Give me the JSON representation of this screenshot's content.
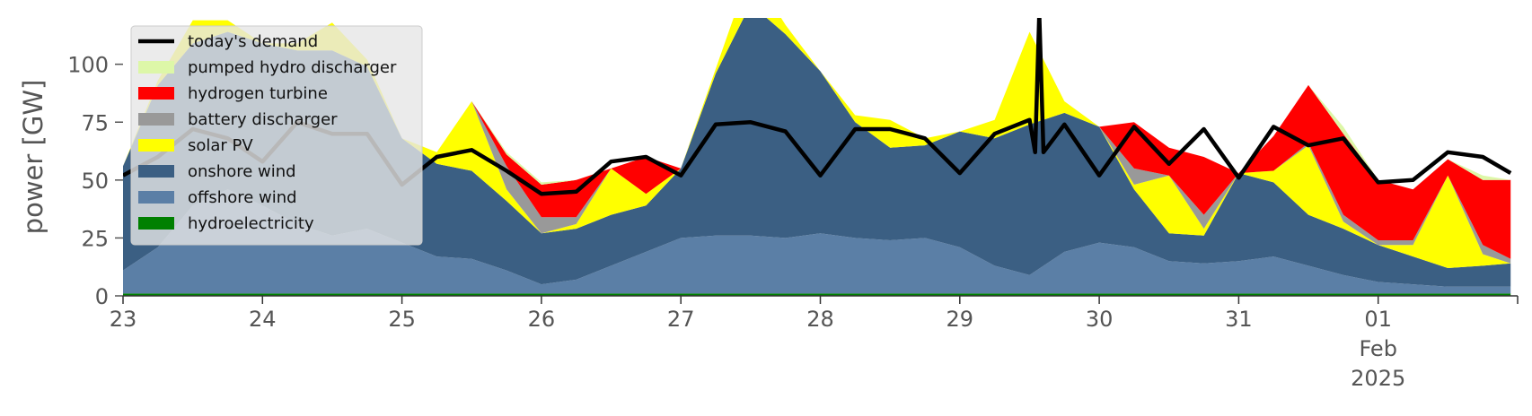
{
  "chart_data": {
    "type": "area",
    "ylabel": "power [GW]",
    "ylim": [
      0,
      120
    ],
    "yticks": [
      0,
      25,
      50,
      75,
      100
    ],
    "xlim": [
      0,
      10
    ],
    "xticks": [
      {
        "x": 0,
        "lines": [
          "23"
        ]
      },
      {
        "x": 1,
        "lines": [
          "24"
        ]
      },
      {
        "x": 2,
        "lines": [
          "25"
        ]
      },
      {
        "x": 3,
        "lines": [
          "26"
        ]
      },
      {
        "x": 4,
        "lines": [
          "27"
        ]
      },
      {
        "x": 5,
        "lines": [
          "28"
        ]
      },
      {
        "x": 6,
        "lines": [
          "29"
        ]
      },
      {
        "x": 7,
        "lines": [
          "30"
        ]
      },
      {
        "x": 8,
        "lines": [
          "31"
        ]
      },
      {
        "x": 9,
        "lines": [
          "01",
          "Feb",
          "2025"
        ]
      }
    ],
    "legend_position": "top-left",
    "x": [
      0,
      0.25,
      0.5,
      0.75,
      1,
      1.25,
      1.5,
      1.75,
      2,
      2.25,
      2.5,
      2.75,
      3,
      3.25,
      3.5,
      3.75,
      4,
      4.25,
      4.5,
      4.75,
      5,
      5.25,
      5.5,
      5.75,
      6,
      6.25,
      6.5,
      6.75,
      7,
      7.25,
      7.5,
      7.75,
      8,
      8.25,
      8.5,
      8.75,
      9,
      9.25,
      9.5,
      9.75,
      9.95
    ],
    "series": [
      {
        "name": "hydroelectricity",
        "color": "#008000",
        "values": [
          1,
          1,
          1,
          1,
          1,
          1,
          1,
          1,
          1,
          1,
          1,
          1,
          1,
          1,
          1,
          1,
          1,
          1,
          1,
          1,
          1,
          1,
          1,
          1,
          1,
          1,
          1,
          1,
          1,
          1,
          1,
          1,
          1,
          1,
          1,
          1,
          1,
          1,
          1,
          1,
          1
        ]
      },
      {
        "name": "offshore wind",
        "color": "#5b7fa6",
        "values": [
          10,
          20,
          38,
          45,
          38,
          30,
          25,
          28,
          22,
          16,
          15,
          10,
          4,
          6,
          12,
          18,
          24,
          25,
          25,
          24,
          26,
          24,
          23,
          24,
          20,
          12,
          8,
          18,
          22,
          20,
          14,
          13,
          14,
          16,
          12,
          8,
          5,
          4,
          3,
          3,
          3
        ]
      },
      {
        "name": "onshore wind",
        "color": "#3b5f83",
        "values": [
          45,
          70,
          70,
          68,
          70,
          75,
          80,
          70,
          45,
          40,
          38,
          30,
          22,
          22,
          22,
          20,
          30,
          70,
          100,
          88,
          70,
          50,
          40,
          40,
          50,
          55,
          65,
          60,
          50,
          25,
          12,
          12,
          38,
          32,
          22,
          20,
          16,
          12,
          8,
          9,
          10
        ]
      },
      {
        "name": "solar PV",
        "color": "#ffff00",
        "values": [
          0,
          2,
          10,
          5,
          0,
          3,
          12,
          3,
          0,
          5,
          30,
          5,
          0,
          2,
          20,
          5,
          0,
          2,
          15,
          4,
          0,
          3,
          12,
          3,
          0,
          8,
          40,
          5,
          0,
          2,
          25,
          3,
          0,
          5,
          30,
          3,
          0,
          5,
          40,
          5,
          0
        ]
      },
      {
        "name": "battery discharger",
        "color": "#999999",
        "values": [
          0,
          0,
          0,
          0,
          0,
          0,
          0,
          0,
          0,
          0,
          0,
          10,
          7,
          3,
          0,
          0,
          0,
          0,
          0,
          0,
          0,
          0,
          0,
          0,
          0,
          0,
          0,
          0,
          0,
          7,
          0,
          6,
          0,
          0,
          1,
          3,
          2,
          2,
          0,
          4,
          2
        ]
      },
      {
        "name": "hydrogen turbine",
        "color": "#ff0000",
        "values": [
          0,
          0,
          0,
          0,
          0,
          0,
          0,
          0,
          0,
          0,
          0,
          5,
          14,
          16,
          0,
          16,
          0,
          0,
          0,
          0,
          0,
          0,
          0,
          0,
          0,
          0,
          0,
          0,
          0,
          20,
          12,
          25,
          0,
          15,
          25,
          35,
          26,
          22,
          7,
          28,
          34
        ]
      },
      {
        "name": "pumped hydro discharger",
        "color": "#ddf7a8",
        "values": [
          0,
          0,
          0,
          0,
          0,
          0,
          0,
          0,
          0,
          0,
          0,
          1,
          1,
          0,
          0,
          0,
          0,
          0,
          0,
          0,
          0,
          0,
          0,
          0,
          0,
          0,
          0,
          0,
          0,
          0,
          0,
          0,
          0,
          0,
          0,
          3,
          0,
          0,
          0,
          2,
          0
        ]
      }
    ],
    "demand": {
      "name": "today's demand",
      "color": "#000000",
      "x": [
        0,
        0.25,
        0.5,
        0.75,
        1,
        1.25,
        1.5,
        1.75,
        2,
        2.25,
        2.5,
        2.75,
        3,
        3.25,
        3.5,
        3.75,
        4,
        4.25,
        4.5,
        4.75,
        5,
        5.25,
        5.5,
        5.75,
        6,
        6.25,
        6.5,
        6.75,
        7,
        7.25,
        7.5,
        7.75,
        8,
        8.25,
        8.5,
        8.75,
        9,
        9.25,
        9.5,
        9.75,
        9.95
      ],
      "values": [
        52,
        60,
        72,
        68,
        58,
        75,
        70,
        70,
        48,
        60,
        63,
        54,
        44,
        45,
        58,
        60,
        52,
        74,
        75,
        71,
        52,
        72,
        72,
        68,
        53,
        70,
        76,
        74,
        52,
        73,
        57,
        72,
        51,
        73,
        65,
        68,
        49,
        50,
        62,
        60,
        53
      ],
      "spike": {
        "x": 6.57,
        "value": 122
      }
    },
    "legend": [
      {
        "label": "today's demand",
        "color": "#000000",
        "kind": "line"
      },
      {
        "label": "pumped hydro discharger",
        "color": "#ddf7a8",
        "kind": "patch"
      },
      {
        "label": "hydrogen turbine",
        "color": "#ff0000",
        "kind": "patch"
      },
      {
        "label": "battery discharger",
        "color": "#999999",
        "kind": "patch"
      },
      {
        "label": "solar PV",
        "color": "#ffff00",
        "kind": "patch"
      },
      {
        "label": "onshore wind",
        "color": "#3b5f83",
        "kind": "patch"
      },
      {
        "label": "offshore wind",
        "color": "#5b7fa6",
        "kind": "patch"
      },
      {
        "label": "hydroelectricity",
        "color": "#008000",
        "kind": "patch"
      }
    ]
  }
}
